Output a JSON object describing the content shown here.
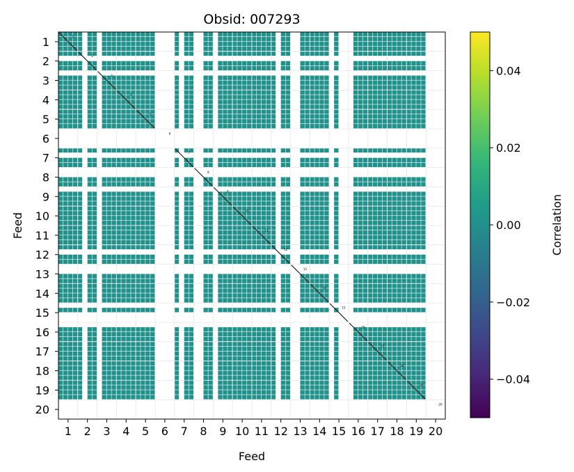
{
  "chart_data": {
    "type": "heatmap",
    "title": "Obsid: 007293",
    "xlabel": "Feed",
    "ylabel": "Feed",
    "x_tick_labels": [
      "1",
      "2",
      "3",
      "4",
      "5",
      "6",
      "7",
      "8",
      "9",
      "10",
      "11",
      "12",
      "13",
      "14",
      "15",
      "16",
      "17",
      "18",
      "19",
      "20"
    ],
    "y_tick_labels": [
      "1",
      "2",
      "3",
      "4",
      "5",
      "6",
      "7",
      "8",
      "9",
      "10",
      "11",
      "12",
      "13",
      "14",
      "15",
      "16",
      "17",
      "18",
      "19",
      "20"
    ],
    "feeds": 20,
    "sub_bands_per_feed": 4,
    "masked_feeds": [
      6,
      20
    ],
    "masked_sub_bands": [
      {
        "feed": 1,
        "bands": []
      },
      {
        "feed": 2,
        "bands": [
          2
        ]
      },
      {
        "feed": 3,
        "bands": [
          1
        ]
      },
      {
        "feed": 4,
        "bands": []
      },
      {
        "feed": 5,
        "bands": []
      },
      {
        "feed": 6,
        "bands": [
          1,
          2,
          3,
          4
        ]
      },
      {
        "feed": 7,
        "bands": [
          2
        ]
      },
      {
        "feed": 8,
        "bands": [
          1,
          2
        ]
      },
      {
        "feed": 9,
        "bands": [
          1
        ]
      },
      {
        "feed": 10,
        "bands": []
      },
      {
        "feed": 11,
        "bands": []
      },
      {
        "feed": 12,
        "bands": [
          2
        ]
      },
      {
        "feed": 13,
        "bands": [
          1,
          2
        ]
      },
      {
        "feed": 14,
        "bands": []
      },
      {
        "feed": 15,
        "bands": [
          1,
          3,
          4
        ]
      },
      {
        "feed": 16,
        "bands": [
          1
        ]
      },
      {
        "feed": 17,
        "bands": []
      },
      {
        "feed": 18,
        "bands": []
      },
      {
        "feed": 19,
        "bands": []
      },
      {
        "feed": 20,
        "bands": [
          1,
          2,
          3,
          4
        ]
      }
    ],
    "fill_value": 0.0,
    "fill_color": "#21918c",
    "grid": true,
    "colorbar": {
      "label": "Correlation",
      "range": [
        -0.05,
        0.05
      ],
      "ticks": [
        -0.04,
        -0.02,
        0.0,
        0.02,
        0.04
      ],
      "tick_labels": [
        "−0.04",
        "−0.02",
        "0.00",
        "0.02",
        "0.04"
      ],
      "colormap": "viridis",
      "colormap_stops": [
        "#440154",
        "#482878",
        "#3e4989",
        "#31688e",
        "#26828e",
        "#1f9e89",
        "#35b779",
        "#6ece58",
        "#b5de2b",
        "#fde725"
      ]
    }
  }
}
